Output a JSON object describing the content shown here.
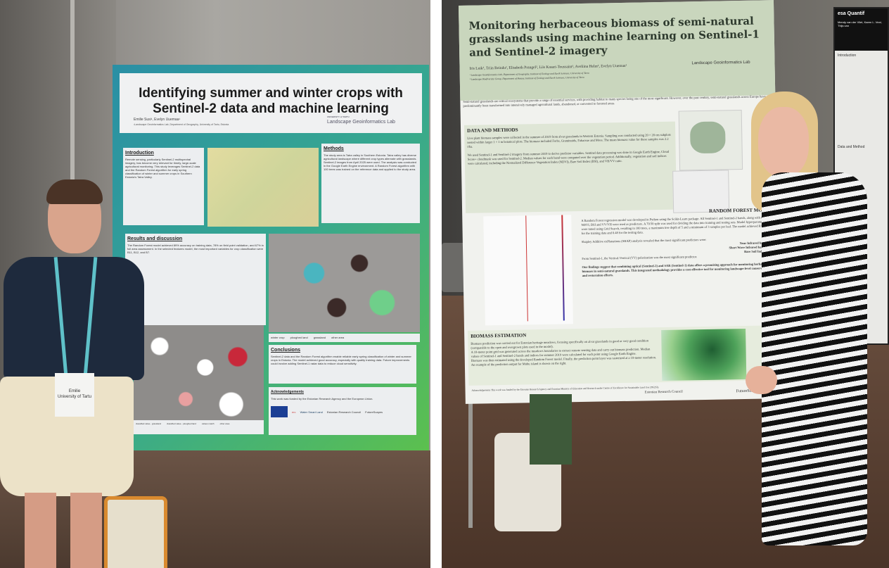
{
  "left_poster": {
    "title": "Identifying summer and winter crops with Sentinel-2 data and machine learning",
    "authors": "Emilie Susi¹, Evelyn Uuemaa¹",
    "affiliation": "¹Landscape Geoinformatics Lab, Department of Geography, University of Tartu, Estonia",
    "lab_logo_top": "UNIVERSITY of TARTU",
    "lab_logo": "Landscape Geoinformatics Lab",
    "introduction": {
      "heading": "Introduction",
      "text": "Remote sensing, particularly Sentinel-2 multispectral imagery, has become very relevant for timely, large-scale agricultural monitoring. This study leverages Sentinel-2 data and the Random Forest algorithm for early spring classification of winter and summer crops in Southern Estonia's Tatra Valley."
    },
    "methods": {
      "heading": "Methods",
      "text": "The study area is Tatra valley in Southern Estonia. Tatra valley has diverse agricultural landscape where different crop types alternate with grasslands. Sentinel-2 images from April 2025 were used. The analysis was conducted in the Google Earth Engine environment. A Random Forest algorithm with 100 trees was trained on the reference data and applied to the study area."
    },
    "results": {
      "heading": "Results and discussion",
      "text": "The Random Forest model achieved 89% accuracy on training data, 78% on field point validation, and 67% in full area assessment. In the selected features model, the most important variables for crop classification were B11, B12, and B7."
    },
    "map_legend": [
      "winter crop",
      "ploughed land",
      "grassland",
      "other area"
    ],
    "map2_legend": [
      "classified value - grassland",
      "classified value - ploughed land",
      "values match",
      "other area"
    ],
    "conclusions": {
      "heading": "Conclusions",
      "text": "Sentinel-2 data and the Random Forest algorithm enable reliable early spring classification of winter and summer crops in Estonia. The model achieved good accuracy, especially with quality training data. Future improvements could involve adding Sentinel-1 radar data to reduce cloud sensitivity."
    },
    "acknowledgements": {
      "heading": "Acknowledgements",
      "text": "This work was funded by the Estonian Research Agency and the European Union."
    },
    "sponsors": [
      "erc",
      "Water Smart Land",
      "Estonian Research Council",
      "FutureScapes"
    ]
  },
  "right_poster": {
    "title": "Monitoring herbaceous biomass of semi-natural grasslands using machine learning on Sentinel-1 and Sentinel-2 imagery",
    "authors": "Iris Luik¹, Triin Reitalu², Elisabeth Prangel², Liis Kasari-Toussaint², Aveliina Helm², Evelyn Uuemaa¹",
    "affiliation_1": "¹ Landscape Geoinformatics Lab, Department of Geography, Institute of Ecology and Earth Sciences, University of Tartu",
    "affiliation_2": "² Landscape Biodiversity Group, Department of Botany, Institute of Ecology and Earth Sciences, University of Tartu",
    "lab_logo": "Landscape Geoinformatics Lab",
    "intro": "Semi-natural grasslands are critical ecosystems that provide a range of essential services, with providing habitat to many species being one of the most significant. However, over the past century, semi-natural grasslands across Europe have predominantly been transformed into intensively managed agricultural lands, abandoned, or converted to forested areas.",
    "data_methods": {
      "heading": "DATA AND METHODS",
      "p1": "Live plant biomass samples were collected in the summer of 2019 from alvar grasslands in Western Estonia. Sampling was conducted using 20 × 20 cm subplots nested within larger 1 × 1 m botanical plots. The biomass included Forbs, Graminoids, Fabaceae and Moss. The mean biomass value for these samples was 2.2 t/ha.",
      "p2": "We used Sentinel-1 and Sentinel-2 imagery from summer 2019 to derive predictor variables. Sentinel data processing was done in Google Earth Engine, Cloud Score+ cloudmask was used for Sentinel-2. Median values for each band were computed over the vegetation period. Additionally, vegetation and soil indices were calculated, including the Normalized Difference Vegetation Index (NDVI), Bare Soil Index (BSI), and VH/VV ratio."
    },
    "rf_model": {
      "heading": "RANDOM FOREST MODEL",
      "p1": "A Random Forest regression model was developed in Python using the Scikit-Learn package. All Sentinel-1 and Sentinel-2 bands, along with the NDVI, BSI and VV/VH were used as predictors. A 70/30 split was used for dividing the data into training and testing sets. Model hyperparameters were tuned using Grid Search, resulting in 100 trees, a maximum tree depth of 5 and a minimum of 3 samples per leaf. The model achieved R² of 0.70 for the training data and 0.48 for the testing data.",
      "p2": "Shapley Additive exPlanations (SHAP) analysis revealed that the most significant predictors were:",
      "bullets": [
        "Near Infrared band (B8)",
        "Short Wave Infrared band (B12)",
        "Bare Soil Index (BSI)"
      ],
      "p3": "From Sentinel-1, the Vertical-Vertical (VV) polarization was the most significant predictor.",
      "p4": "Our findings suggest that combining optical (Sentinel-2) and SAR (Sentinel-1) data offers a promising approach for monitoring herbaceous biomass in semi-natural grasslands. This integrated methodology provides a cost-effective tool for monitoring landscape-level conservation and restoration efforts."
    },
    "biomass": {
      "heading": "BIOMASS ESTIMATION",
      "p1": "Biomass prediction was carried out for Estonian heritage meadows, focusing specifically on alvar grasslands in good or very good condition (comparable to the open and overgrown plots used in the model).",
      "p2": "A 10-meter point grid was generated across the meadows boundaries to extract remote sensing data and carry out biomass prediction. Median values of Sentinel-1 and Sentinel-2 bands and indices for summer 2019 were calculated for each point using Google Earth Engine.",
      "p3": "Biomass was then estimated using the developed Random Forest model. Finally, the prediction point layer was rasterized at a 10-meter resolution. An example of the prediction output for Muhu island is shown on the right."
    },
    "acknowledgements": "Acknowledgements",
    "funding": "This work was funded by the Estonian Research Agency and Estonian Ministry of Education and Research under Centre of Excellence for Sustainable Land Use (TK232).",
    "sponsors": [
      "Estonian Research Council",
      "FutureScapes"
    ]
  },
  "third_poster": {
    "logo": "esa",
    "title": "Quantif",
    "authors": "Mendy van der Vliet, Karen L. Veal, Thijs van",
    "intro_heading": "Introduction",
    "methods_heading": "Data and Method"
  },
  "badge": {
    "name": "Emilie",
    "org": "University of Tartu"
  }
}
